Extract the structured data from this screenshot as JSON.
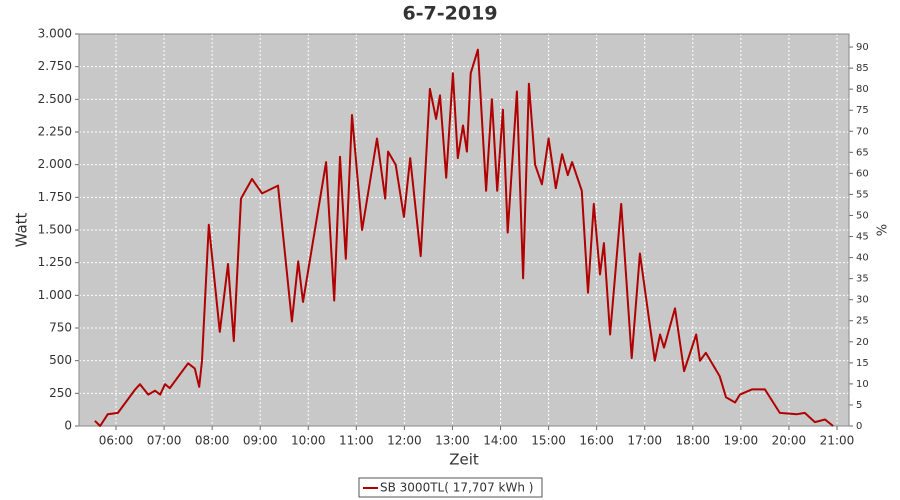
{
  "chart_data": {
    "type": "line",
    "title": "6-7-2019",
    "x_label": "Zeit",
    "y_label": "Watt",
    "y2_label": "%",
    "x": [
      5.56,
      5.67,
      5.83,
      6.04,
      6.4,
      6.5,
      6.67,
      6.81,
      6.92,
      7.02,
      7.12,
      7.5,
      7.64,
      7.73,
      7.79,
      7.93,
      8.16,
      8.33,
      8.45,
      8.6,
      8.83,
      9.04,
      9.37,
      9.66,
      9.79,
      9.89,
      10.37,
      10.54,
      10.66,
      10.78,
      10.91,
      11.12,
      11.43,
      11.6,
      11.66,
      11.82,
      11.99,
      12.12,
      12.34,
      12.53,
      12.66,
      12.74,
      12.87,
      13.01,
      13.11,
      13.22,
      13.3,
      13.38,
      13.53,
      13.7,
      13.82,
      13.93,
      14.05,
      14.15,
      14.34,
      14.47,
      14.59,
      14.72,
      14.86,
      15.0,
      15.15,
      15.28,
      15.4,
      15.49,
      15.69,
      15.82,
      15.94,
      16.07,
      16.15,
      16.28,
      16.51,
      16.73,
      16.9,
      17.21,
      17.32,
      17.4,
      17.63,
      17.82,
      18.07,
      18.15,
      18.27,
      18.56,
      18.69,
      18.88,
      18.98,
      19.23,
      19.5,
      19.81,
      20.17,
      20.33,
      20.54,
      20.75,
      20.92
    ],
    "series": [
      {
        "name": "SB 3000TL( 17,707 kWh )",
        "color": "#b00000",
        "values": [
          40,
          0,
          90,
          100,
          280,
          320,
          240,
          270,
          240,
          320,
          290,
          480,
          440,
          300,
          500,
          1540,
          720,
          1240,
          650,
          1740,
          1890,
          1780,
          1840,
          800,
          1260,
          950,
          2020,
          960,
          2060,
          1280,
          2380,
          1500,
          2200,
          1740,
          2100,
          2000,
          1600,
          2050,
          1300,
          2580,
          2350,
          2530,
          1900,
          2700,
          2050,
          2300,
          2100,
          2700,
          2880,
          1800,
          2500,
          1800,
          2420,
          1480,
          2560,
          1130,
          2620,
          2000,
          1850,
          2200,
          1820,
          2080,
          1920,
          2020,
          1800,
          1020,
          1700,
          1160,
          1400,
          700,
          1700,
          520,
          1320,
          500,
          700,
          600,
          900,
          420,
          700,
          500,
          560,
          380,
          220,
          180,
          240,
          280,
          280,
          100,
          90,
          100,
          30,
          50,
          0
        ]
      }
    ],
    "xlim": [
      5.23,
      21.25
    ],
    "xticks": [
      {
        "value": 6,
        "label": "06:00"
      },
      {
        "value": 7,
        "label": "07:00"
      },
      {
        "value": 8,
        "label": "08:00"
      },
      {
        "value": 9,
        "label": "09:00"
      },
      {
        "value": 10,
        "label": "10:00"
      },
      {
        "value": 11,
        "label": "11:00"
      },
      {
        "value": 12,
        "label": "12:00"
      },
      {
        "value": 13,
        "label": "13:00"
      },
      {
        "value": 14,
        "label": "14:00"
      },
      {
        "value": 15,
        "label": "15:00"
      },
      {
        "value": 16,
        "label": "16:00"
      },
      {
        "value": 17,
        "label": "17:00"
      },
      {
        "value": 18,
        "label": "18:00"
      },
      {
        "value": 19,
        "label": "19:00"
      },
      {
        "value": 20,
        "label": "20:00"
      },
      {
        "value": 21,
        "label": "21:00"
      }
    ],
    "ylim": [
      0,
      3000
    ],
    "yticks": [
      0,
      250,
      500,
      750,
      {
        "value": 1000,
        "label": "1.000"
      },
      {
        "value": 1250,
        "label": "1.250"
      },
      {
        "value": 1500,
        "label": "1.500"
      },
      {
        "value": 1750,
        "label": "1.750"
      },
      {
        "value": 2000,
        "label": "2.000"
      },
      {
        "value": 2250,
        "label": "2.250"
      },
      {
        "value": 2500,
        "label": "2.500"
      },
      {
        "value": 2750,
        "label": "2.750"
      },
      {
        "value": 3000,
        "label": "3.000"
      }
    ],
    "y2lim": [
      0,
      93.1
    ],
    "y2ticks": [
      0,
      5,
      10,
      15,
      20,
      25,
      30,
      35,
      40,
      45,
      50,
      55,
      60,
      65,
      70,
      75,
      80,
      85,
      90
    ],
    "grid": true,
    "legend": "bottom"
  }
}
